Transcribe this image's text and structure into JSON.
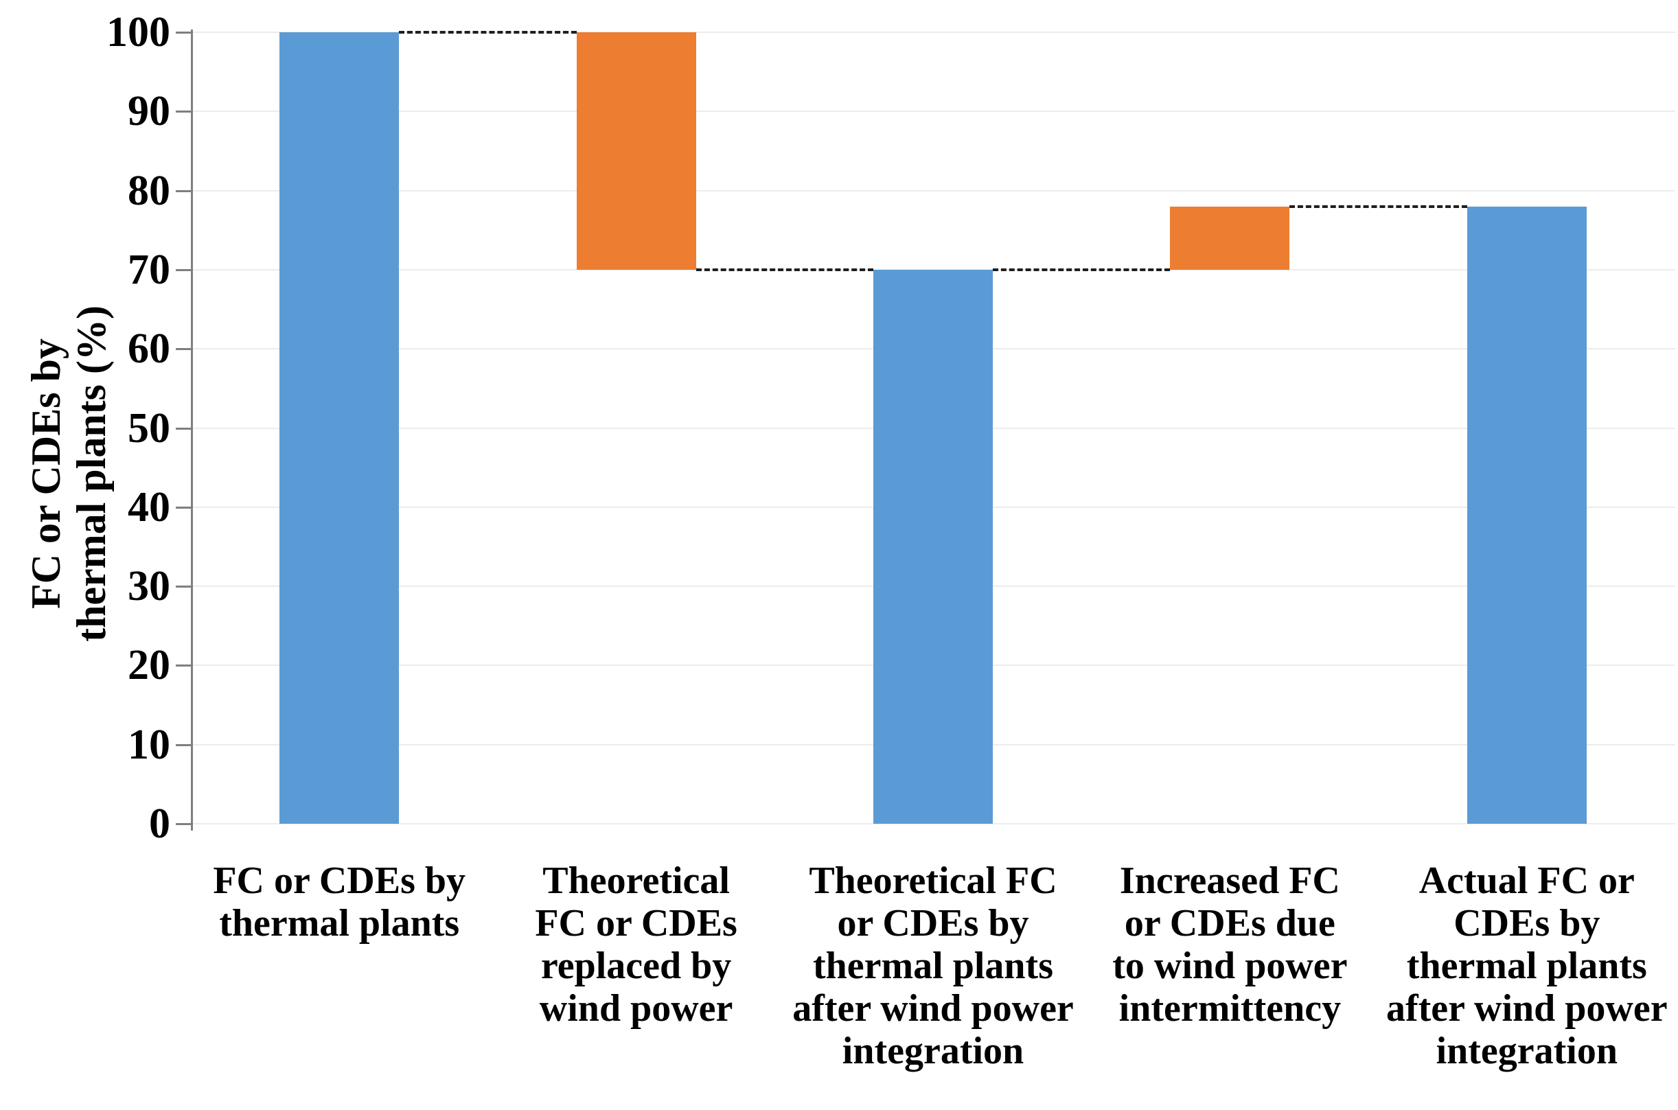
{
  "chart_data": {
    "type": "bar",
    "subtype": "waterfall",
    "title": "",
    "xlabel": "",
    "ylabel_lines": [
      "FC or CDEs by",
      "thermal plants (%)"
    ],
    "ylim": [
      0,
      100
    ],
    "yticks": [
      0,
      10,
      20,
      30,
      40,
      50,
      60,
      70,
      80,
      90,
      100
    ],
    "grid": "horizontal",
    "legend": "none",
    "colors": {
      "total_bar": "#5B9BD5",
      "delta_bar": "#ED7D31",
      "gridline": "#ececec",
      "axis": "#7f7f7f",
      "connector": "#1f1f1f",
      "text": "#000000"
    },
    "categories": [
      {
        "label_lines": [
          "FC or CDEs by",
          "thermal plants"
        ],
        "base": 0,
        "top": 100,
        "value": 100,
        "role": "total"
      },
      {
        "label_lines": [
          "Theoretical",
          "FC or  CDEs",
          "replaced by",
          "wind power"
        ],
        "base": 70,
        "top": 100,
        "value": -30,
        "role": "delta"
      },
      {
        "label_lines": [
          "Theoretical FC",
          "or CDEs by",
          "thermal plants",
          "after wind power",
          "integration"
        ],
        "base": 0,
        "top": 70,
        "value": 70,
        "role": "total"
      },
      {
        "label_lines": [
          "Increased FC",
          "or CDEs due",
          "to wind power",
          "intermittency"
        ],
        "base": 70,
        "top": 78,
        "value": 8,
        "role": "delta"
      },
      {
        "label_lines": [
          "Actual FC or",
          "CDEs by",
          "thermal plants",
          "after wind power",
          "integration"
        ],
        "base": 0,
        "top": 78,
        "value": 78,
        "role": "total"
      }
    ],
    "connectors": [
      {
        "level": 100,
        "from": 0,
        "to": 1
      },
      {
        "level": 70,
        "from": 1,
        "to": 2
      },
      {
        "level": 70,
        "from": 2,
        "to": 3
      },
      {
        "level": 78,
        "from": 3,
        "to": 4
      }
    ]
  }
}
